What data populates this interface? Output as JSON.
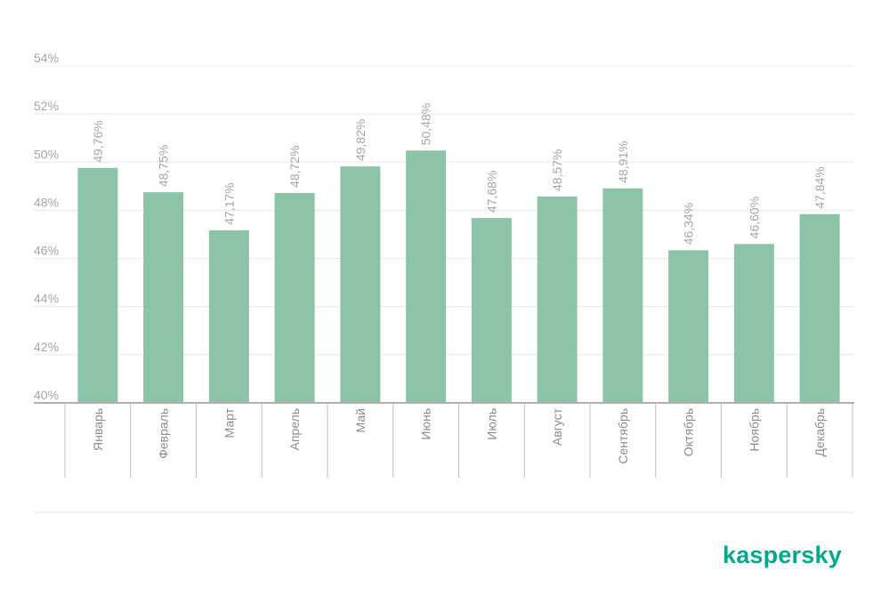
{
  "chart_data": {
    "type": "bar",
    "categories": [
      "Январь",
      "Февраль",
      "Март",
      "Апрель",
      "Май",
      "Июнь",
      "Июль",
      "Август",
      "Сентябрь",
      "Октябрь",
      "Ноябрь",
      "Декабрь"
    ],
    "values": [
      49.76,
      48.75,
      47.17,
      48.72,
      49.82,
      50.48,
      47.68,
      48.57,
      48.91,
      46.34,
      46.6,
      47.84
    ],
    "value_labels": [
      "49,76%",
      "48,75%",
      "47,17%",
      "48,72%",
      "49,82%",
      "50,48%",
      "47,68%",
      "48,57%",
      "48,91%",
      "46,34%",
      "46,60%",
      "47,84%"
    ],
    "y_ticks": [
      40,
      42,
      44,
      46,
      48,
      50,
      52,
      54
    ],
    "y_tick_labels": [
      "40%",
      "42%",
      "44%",
      "46%",
      "48%",
      "50%",
      "52%",
      "54%"
    ],
    "ylim": [
      40,
      54
    ],
    "grid": true,
    "title": "",
    "xlabel": "",
    "ylabel": "",
    "legend": "none",
    "bar_color": "#8dc3a7"
  },
  "brand": {
    "name": "kaspersky",
    "color": "#00a88e"
  }
}
